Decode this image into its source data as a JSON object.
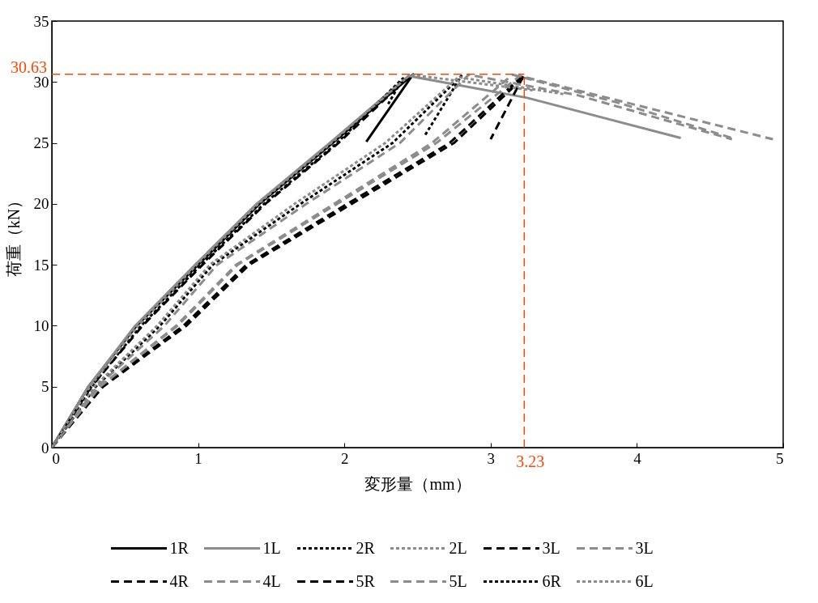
{
  "chart_data": {
    "type": "line",
    "xlabel": "変形量（mm）",
    "ylabel": "荷重（kN）",
    "xlim": [
      0,
      5
    ],
    "xticks": [
      0,
      1,
      2,
      3,
      4,
      5
    ],
    "ylim": [
      0,
      35
    ],
    "yticks": [
      0,
      5,
      10,
      15,
      20,
      25,
      30,
      35
    ],
    "grid": false,
    "legend": "bottom",
    "series": [
      {
        "name": "1R",
        "color": "#000000",
        "line_style": "solid",
        "x": [
          0,
          0.25,
          0.58,
          1.0,
          1.42,
          1.92,
          2.47,
          2.15
        ],
        "values": [
          0,
          5,
          10,
          15,
          20,
          25,
          30.63,
          25.1
        ]
      },
      {
        "name": "1L",
        "color": "#8c8c8c",
        "line_style": "solid",
        "x": [
          0,
          0.25,
          0.57,
          0.98,
          1.4,
          1.9,
          2.44,
          3.25,
          4.3
        ],
        "values": [
          0,
          5,
          10,
          15,
          20,
          25,
          30.5,
          28.7,
          25.4
        ]
      },
      {
        "name": "2R",
        "color": "#000000",
        "line_style": "dotted",
        "x": [
          0,
          0.3,
          0.74,
          1.1,
          1.7,
          2.33,
          2.8,
          2.55
        ],
        "values": [
          0,
          5,
          10,
          15,
          20,
          25,
          30.5,
          25.6
        ]
      },
      {
        "name": "2L",
        "color": "#8c8c8c",
        "line_style": "dotted",
        "x": [
          0,
          0.29,
          0.72,
          1.08,
          1.66,
          2.28,
          2.78,
          3.5
        ],
        "values": [
          0,
          5,
          10,
          15,
          20,
          25,
          30.4,
          29.0
        ]
      },
      {
        "name": "3L",
        "color": "#000000",
        "line_style": "dashed",
        "x": [
          0,
          0.34,
          0.9,
          1.33,
          2.02,
          2.72,
          3.23,
          3.0
        ],
        "values": [
          0,
          5,
          10,
          15,
          20,
          25,
          30.63,
          25.3
        ]
      },
      {
        "name": "3L",
        "color": "#8c8c8c",
        "line_style": "dashed",
        "x": [
          0,
          0.33,
          0.86,
          1.27,
          1.95,
          2.63,
          3.2,
          4.93
        ],
        "values": [
          0,
          5,
          10,
          15,
          20,
          25,
          30.5,
          25.3
        ]
      },
      {
        "name": "4R",
        "color": "#000000",
        "line_style": "dashed",
        "x": [
          0,
          0.35,
          0.92,
          1.35,
          2.05,
          2.75,
          3.22
        ],
        "values": [
          0,
          5,
          10,
          15,
          20,
          25,
          30.3
        ]
      },
      {
        "name": "4L",
        "color": "#8c8c8c",
        "line_style": "dashed",
        "x": [
          0,
          0.33,
          0.85,
          1.26,
          1.93,
          2.6,
          3.15,
          3.9,
          4.65
        ],
        "values": [
          0,
          5,
          10,
          15,
          20,
          25,
          30.6,
          28.2,
          25.4
        ]
      },
      {
        "name": "5R",
        "color": "#000000",
        "line_style": "dashed",
        "x": [
          0,
          0.27,
          0.62,
          1.03,
          1.46,
          1.96,
          2.42
        ],
        "values": [
          0,
          5,
          10,
          15,
          20,
          25,
          30.2
        ]
      },
      {
        "name": "5L",
        "color": "#8c8c8c",
        "line_style": "dashed",
        "x": [
          0,
          0.31,
          0.77,
          1.13,
          1.74,
          2.38,
          2.85,
          3.6,
          4.65
        ],
        "values": [
          0,
          5,
          10,
          15,
          20,
          25,
          30.6,
          28.9,
          25.3
        ]
      },
      {
        "name": "6R",
        "color": "#000000",
        "line_style": "dotted",
        "x": [
          0,
          0.27,
          0.61,
          1.02,
          1.45,
          1.95,
          2.4,
          2.3
        ],
        "values": [
          0,
          5,
          10,
          15,
          20,
          25,
          30.3,
          28.2
        ]
      },
      {
        "name": "6L",
        "color": "#8c8c8c",
        "line_style": "dotted",
        "x": [
          0,
          0.26,
          0.59,
          0.99,
          1.41,
          1.91,
          2.45,
          3.3
        ],
        "values": [
          0,
          5,
          10,
          15,
          20,
          25,
          30.6,
          29.3
        ]
      }
    ],
    "ref_lines": [
      {
        "axis": "y",
        "value": 30.63,
        "label": "30.63",
        "color": "#ff4500",
        "line_style": "dashed"
      },
      {
        "axis": "x",
        "value": 3.23,
        "label": "3.23",
        "color": "#ff4500",
        "line_style": "dashed"
      }
    ]
  }
}
